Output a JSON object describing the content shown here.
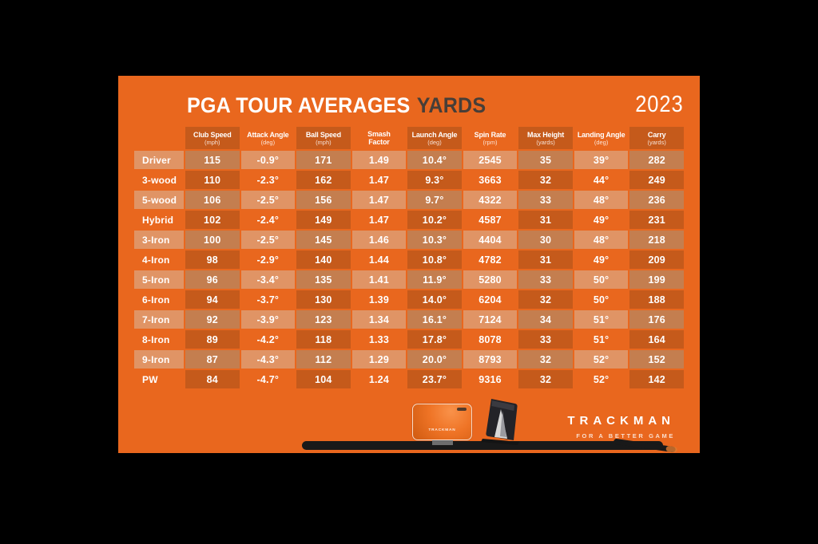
{
  "card": {
    "title_main": "PGA TOUR AVERAGES",
    "title_accent": "YARDS",
    "year": "2023"
  },
  "table": {
    "club_column_header": "",
    "columns": [
      {
        "label": "Club Speed",
        "unit": "(mph)"
      },
      {
        "label": "Attack Angle",
        "unit": "(deg)"
      },
      {
        "label": "Ball Speed",
        "unit": "(mph)"
      },
      {
        "label": "Smash\nFactor",
        "unit": ""
      },
      {
        "label": "Launch Angle",
        "unit": "(deg)"
      },
      {
        "label": "Spin Rate",
        "unit": "(rpm)"
      },
      {
        "label": "Max Height",
        "unit": "(yards)"
      },
      {
        "label": "Landing Angle",
        "unit": "(deg)"
      },
      {
        "label": "Carry",
        "unit": "(yards)"
      }
    ],
    "rows": [
      {
        "club": "Driver",
        "values": [
          "115",
          "-0.9°",
          "171",
          "1.49",
          "10.4°",
          "2545",
          "35",
          "39°",
          "282"
        ]
      },
      {
        "club": "3-wood",
        "values": [
          "110",
          "-2.3°",
          "162",
          "1.47",
          "9.3°",
          "3663",
          "32",
          "44°",
          "249"
        ]
      },
      {
        "club": "5-wood",
        "values": [
          "106",
          "-2.5°",
          "156",
          "1.47",
          "9.7°",
          "4322",
          "33",
          "48°",
          "236"
        ]
      },
      {
        "club": "Hybrid",
        "values": [
          "102",
          "-2.4°",
          "149",
          "1.47",
          "10.2°",
          "4587",
          "31",
          "49°",
          "231"
        ]
      },
      {
        "club": "3-Iron",
        "values": [
          "100",
          "-2.5°",
          "145",
          "1.46",
          "10.3°",
          "4404",
          "30",
          "48°",
          "218"
        ]
      },
      {
        "club": "4-Iron",
        "values": [
          "98",
          "-2.9°",
          "140",
          "1.44",
          "10.8°",
          "4782",
          "31",
          "49°",
          "209"
        ]
      },
      {
        "club": "5-Iron",
        "values": [
          "96",
          "-3.4°",
          "135",
          "1.41",
          "11.9°",
          "5280",
          "33",
          "50°",
          "199"
        ]
      },
      {
        "club": "6-Iron",
        "values": [
          "94",
          "-3.7°",
          "130",
          "1.39",
          "14.0°",
          "6204",
          "32",
          "50°",
          "188"
        ]
      },
      {
        "club": "7-Iron",
        "values": [
          "92",
          "-3.9°",
          "123",
          "1.34",
          "16.1°",
          "7124",
          "34",
          "51°",
          "176"
        ]
      },
      {
        "club": "8-Iron",
        "values": [
          "89",
          "-4.2°",
          "118",
          "1.33",
          "17.8°",
          "8078",
          "33",
          "51°",
          "164"
        ]
      },
      {
        "club": "9-Iron",
        "values": [
          "87",
          "-4.3°",
          "112",
          "1.29",
          "20.0°",
          "8793",
          "32",
          "52°",
          "152"
        ]
      },
      {
        "club": "PW",
        "values": [
          "84",
          "-4.7°",
          "104",
          "1.24",
          "23.7°",
          "9316",
          "32",
          "52°",
          "142"
        ]
      }
    ]
  },
  "branding": {
    "wordmark": "TRACKMAN",
    "tagline": "FOR A BETTER GAME",
    "device_label": "TRACKMAN"
  },
  "colors": {
    "orange": "#E9671E",
    "cell_dark": "#C55A1B",
    "cell_light": "#E09465",
    "cell_both": "#C47E4F",
    "accent_dark": "#473E38",
    "bar_dark": "#191919"
  },
  "chart_data": {
    "type": "table",
    "title": "PGA TOUR AVERAGES YARDS",
    "year": "2023",
    "columns": [
      "Club",
      "Club Speed (mph)",
      "Attack Angle (deg)",
      "Ball Speed (mph)",
      "Smash Factor",
      "Launch Angle (deg)",
      "Spin Rate (rpm)",
      "Max Height (yards)",
      "Landing Angle (deg)",
      "Carry (yards)"
    ],
    "rows": [
      [
        "Driver",
        115,
        -0.9,
        171,
        1.49,
        10.4,
        2545,
        35,
        39,
        282
      ],
      [
        "3-wood",
        110,
        -2.3,
        162,
        1.47,
        9.3,
        3663,
        32,
        44,
        249
      ],
      [
        "5-wood",
        106,
        -2.5,
        156,
        1.47,
        9.7,
        4322,
        33,
        48,
        236
      ],
      [
        "Hybrid",
        102,
        -2.4,
        149,
        1.47,
        10.2,
        4587,
        31,
        49,
        231
      ],
      [
        "3-Iron",
        100,
        -2.5,
        145,
        1.46,
        10.3,
        4404,
        30,
        48,
        218
      ],
      [
        "4-Iron",
        98,
        -2.9,
        140,
        1.44,
        10.8,
        4782,
        31,
        49,
        209
      ],
      [
        "5-Iron",
        96,
        -3.4,
        135,
        1.41,
        11.9,
        5280,
        33,
        50,
        199
      ],
      [
        "6-Iron",
        94,
        -3.7,
        130,
        1.39,
        14.0,
        6204,
        32,
        50,
        188
      ],
      [
        "7-Iron",
        92,
        -3.9,
        123,
        1.34,
        16.1,
        7124,
        34,
        51,
        176
      ],
      [
        "8-Iron",
        89,
        -4.2,
        118,
        1.33,
        17.8,
        8078,
        33,
        51,
        164
      ],
      [
        "9-Iron",
        87,
        -4.3,
        112,
        1.29,
        20.0,
        8793,
        32,
        52,
        152
      ],
      [
        "PW",
        84,
        -4.7,
        104,
        1.24,
        23.7,
        9316,
        32,
        52,
        142
      ]
    ]
  }
}
